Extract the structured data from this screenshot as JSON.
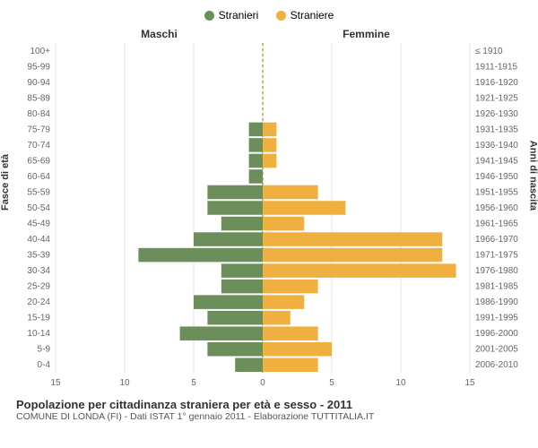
{
  "legend": {
    "male": {
      "label": "Stranieri",
      "color": "#6b8e5a"
    },
    "female": {
      "label": "Straniere",
      "color": "#f0b040"
    }
  },
  "header": {
    "maleCol": "Maschi",
    "femaleCol": "Femmine"
  },
  "axes": {
    "leftTitle": "Fasce di età",
    "rightTitle": "Anni di nascita",
    "xlim": 15,
    "xtick_step": 5,
    "background_color": "#ffffff",
    "grid_color": "#e5e5e5",
    "zero_line_color": "#808000",
    "tick_fontsize": 10,
    "axis_title_fontsize": 11
  },
  "rows": [
    {
      "age": "100+",
      "year": "≤ 1910",
      "m": 0,
      "f": 0
    },
    {
      "age": "95-99",
      "year": "1911-1915",
      "m": 0,
      "f": 0
    },
    {
      "age": "90-94",
      "year": "1916-1920",
      "m": 0,
      "f": 0
    },
    {
      "age": "85-89",
      "year": "1921-1925",
      "m": 0,
      "f": 0
    },
    {
      "age": "80-84",
      "year": "1926-1930",
      "m": 0,
      "f": 0
    },
    {
      "age": "75-79",
      "year": "1931-1935",
      "m": 1,
      "f": 1
    },
    {
      "age": "70-74",
      "year": "1936-1940",
      "m": 1,
      "f": 1
    },
    {
      "age": "65-69",
      "year": "1941-1945",
      "m": 1,
      "f": 1
    },
    {
      "age": "60-64",
      "year": "1946-1950",
      "m": 1,
      "f": 0
    },
    {
      "age": "55-59",
      "year": "1951-1955",
      "m": 4,
      "f": 4
    },
    {
      "age": "50-54",
      "year": "1956-1960",
      "m": 4,
      "f": 6
    },
    {
      "age": "45-49",
      "year": "1961-1965",
      "m": 3,
      "f": 3
    },
    {
      "age": "40-44",
      "year": "1966-1970",
      "m": 5,
      "f": 13
    },
    {
      "age": "35-39",
      "year": "1971-1975",
      "m": 9,
      "f": 13
    },
    {
      "age": "30-34",
      "year": "1976-1980",
      "m": 3,
      "f": 14
    },
    {
      "age": "25-29",
      "year": "1981-1985",
      "m": 3,
      "f": 4
    },
    {
      "age": "20-24",
      "year": "1986-1990",
      "m": 5,
      "f": 3
    },
    {
      "age": "15-19",
      "year": "1991-1995",
      "m": 4,
      "f": 2
    },
    {
      "age": "10-14",
      "year": "1996-2000",
      "m": 6,
      "f": 4
    },
    {
      "age": "5-9",
      "year": "2001-2005",
      "m": 4,
      "f": 5
    },
    {
      "age": "0-4",
      "year": "2006-2010",
      "m": 2,
      "f": 4
    }
  ],
  "footer": {
    "title": "Popolazione per cittadinanza straniera per età e sesso - 2011",
    "sub": "COMUNE DI LONDA (FI) - Dati ISTAT 1° gennaio 2011 - Elaborazione TUTTITALIA.IT"
  },
  "chart": {
    "type": "population-pyramid",
    "bar_gap": 2,
    "male_color": "#6b8e5a",
    "female_color": "#f0b040"
  }
}
